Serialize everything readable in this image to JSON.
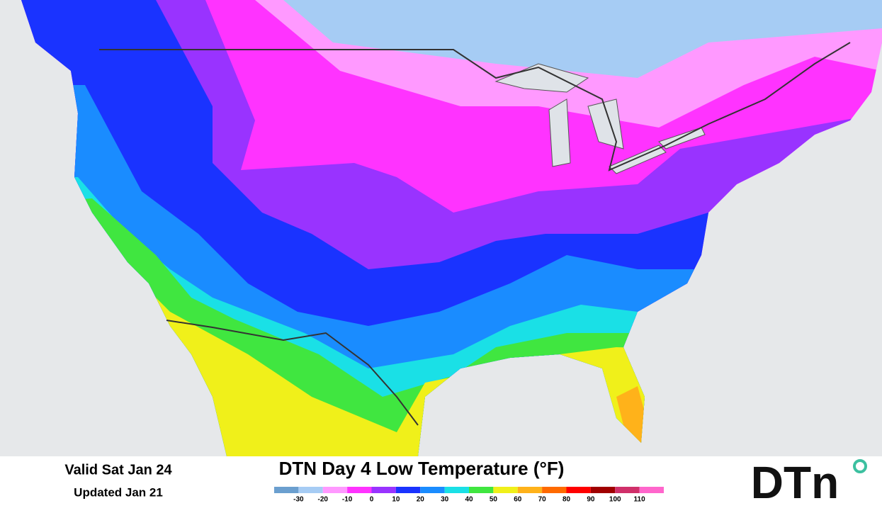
{
  "footer": {
    "valid": "Valid Sat Jan 24",
    "updated": "Updated Jan 21",
    "title": "DTN Day 4 Low Temperature (°F)",
    "logo": "DTn"
  },
  "legend": {
    "colors": [
      "#6b9fcf",
      "#a6ccf4",
      "#ff99ff",
      "#ff33ff",
      "#9933ff",
      "#1a33ff",
      "#1a8cff",
      "#1ae0e6",
      "#40e640",
      "#f0f01a",
      "#ffb21a",
      "#ff6a00",
      "#ff0000",
      "#a00000",
      "#d0306a",
      "#ff66cc"
    ],
    "labels": [
      -30,
      -20,
      -10,
      0,
      10,
      20,
      30,
      40,
      50,
      60,
      70,
      80,
      90,
      100,
      110
    ]
  }
}
